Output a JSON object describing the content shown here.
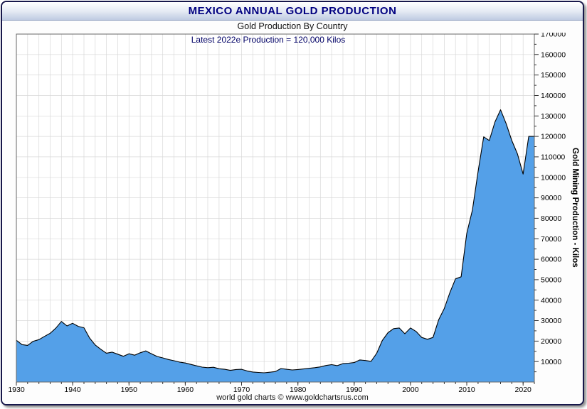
{
  "window": {
    "title_bar": "MEXICO ANNUAL GOLD PRODUCTION"
  },
  "chart_data": {
    "type": "area",
    "title": "MEXICO ANNUAL GOLD PRODUCTION",
    "subtitle": "Gold Production By Country",
    "annotation": "Latest 2022e Production = 120,000 Kilos",
    "ylabel": "Gold Mining Production - Kilos",
    "xlabel": "",
    "footer": "world gold charts © www.goldchartsrus.com",
    "legend_position": "none",
    "grid": true,
    "xlim": [
      1930,
      2022
    ],
    "ylim": [
      0,
      170000
    ],
    "x_start": 1930,
    "x_step": 1,
    "x_ticks": [
      1930,
      1940,
      1950,
      1960,
      1970,
      1980,
      1990,
      2000,
      2010,
      2020
    ],
    "y_tick_interval": 10000,
    "y_minor_tick_interval": 5000,
    "x_grid_interval": 2,
    "values": [
      20400,
      18300,
      17900,
      19900,
      20700,
      22300,
      23800,
      26300,
      29600,
      27400,
      28700,
      27200,
      26500,
      21500,
      18100,
      16000,
      14100,
      14600,
      13600,
      12600,
      13800,
      13100,
      14300,
      15200,
      13800,
      12500,
      11800,
      11000,
      10400,
      9700,
      9300,
      8600,
      7900,
      7300,
      7000,
      7200,
      6500,
      6200,
      5700,
      6100,
      6200,
      5400,
      4900,
      4700,
      4500,
      4800,
      5100,
      6600,
      6200,
      5900,
      6100,
      6400,
      6700,
      7000,
      7400,
      8100,
      8500,
      8000,
      9000,
      9200,
      9500,
      10800,
      10500,
      10100,
      14000,
      20300,
      24100,
      26100,
      26400,
      23600,
      26400,
      24700,
      21800,
      20900,
      21800,
      30400,
      35900,
      43700,
      50400,
      51400,
      72600,
      84100,
      102800,
      119800,
      118000,
      127000,
      133000,
      126200,
      118000,
      111400,
      101600,
      120000,
      120000
    ],
    "colors": {
      "area_fill": "#54A0E8",
      "line": "#000000",
      "grid": "#d8d8d8",
      "plot_border": "#666666",
      "title": "#000080",
      "annotation": "#000066"
    }
  }
}
